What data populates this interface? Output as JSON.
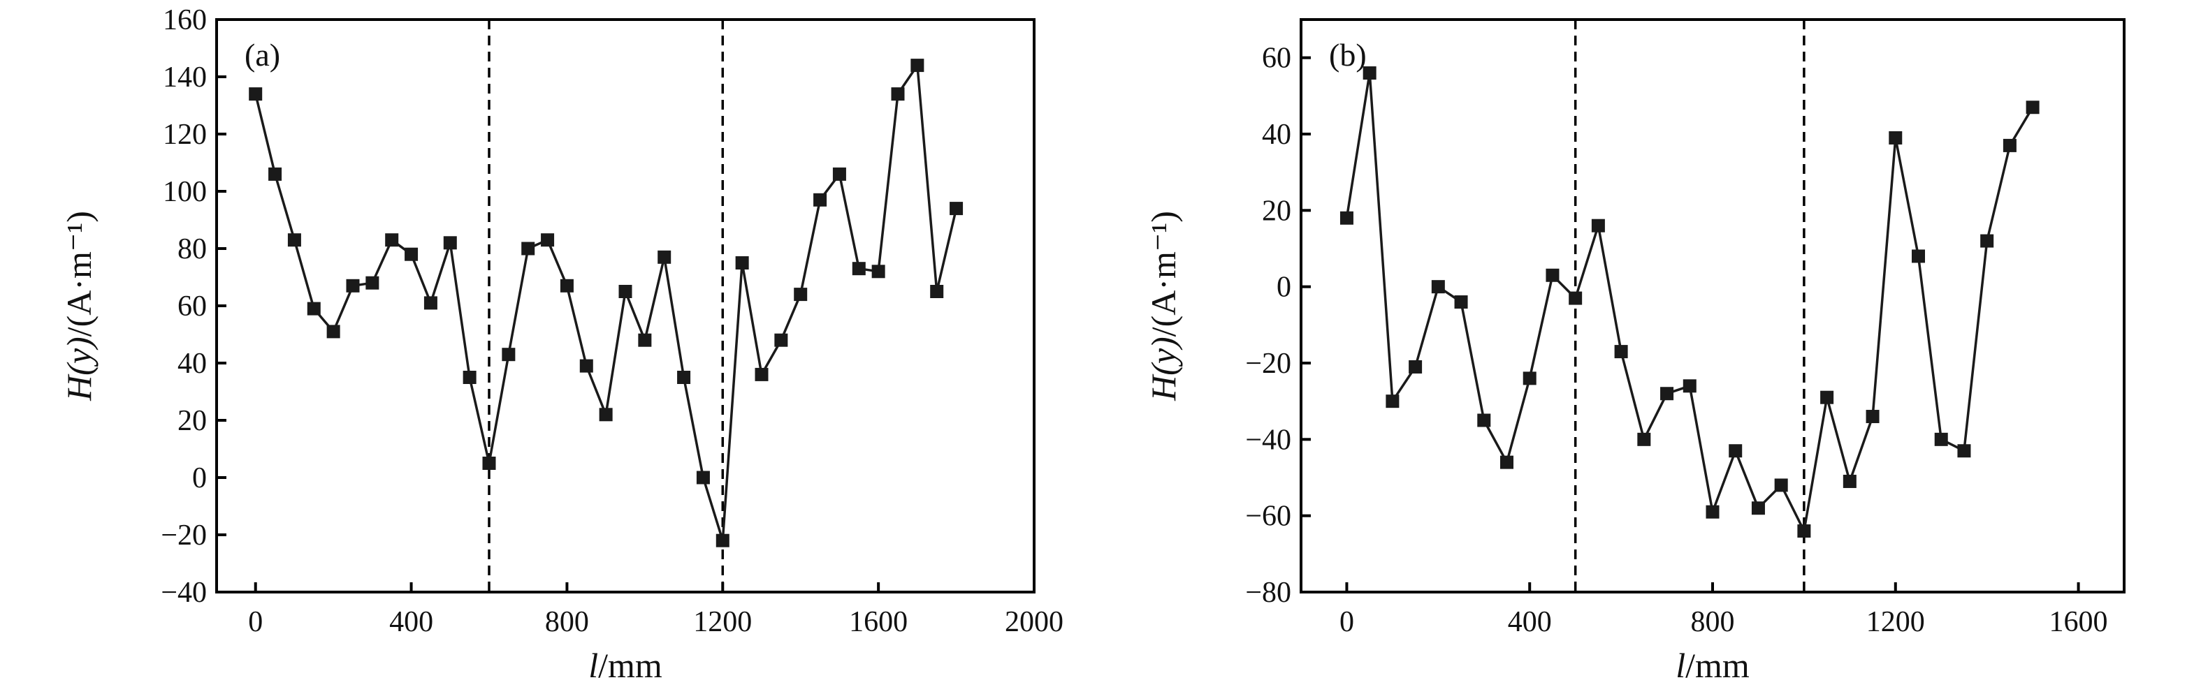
{
  "chart_data": [
    {
      "type": "line",
      "panel_label": "(a)",
      "xlabel_italic": "l",
      "xlabel_rest": "/mm",
      "ylabel_italic": "H(y)",
      "ylabel_rest": "/(A·m⁻¹)",
      "xlim": [
        -100,
        2000
      ],
      "ylim": [
        -40,
        160
      ],
      "xticks": [
        0,
        400,
        800,
        1200,
        1600,
        2000
      ],
      "yticks": [
        -40,
        -20,
        0,
        20,
        40,
        60,
        80,
        100,
        120,
        140,
        160
      ],
      "vertical_dashed_lines_x": [
        600,
        1200
      ],
      "marker": "square",
      "series": [
        {
          "x": [
            0,
            50,
            100,
            150,
            200,
            250,
            300,
            350,
            400,
            450,
            500,
            550,
            600,
            650,
            700,
            750,
            800,
            850,
            900,
            950,
            1000,
            1050,
            1100,
            1150,
            1200,
            1250,
            1300,
            1350,
            1400,
            1450,
            1500,
            1550,
            1600,
            1650,
            1700,
            1750,
            1800
          ],
          "values": [
            134,
            106,
            83,
            59,
            51,
            67,
            68,
            83,
            78,
            61,
            82,
            35,
            5,
            43,
            80,
            83,
            67,
            39,
            22,
            65,
            48,
            77,
            35,
            0,
            -22,
            75,
            36,
            48,
            64,
            97,
            106,
            73,
            72,
            134,
            144,
            65,
            94
          ]
        }
      ]
    },
    {
      "type": "line",
      "panel_label": "(b)",
      "xlabel_italic": "l",
      "xlabel_rest": "/mm",
      "ylabel_italic": "H(y)",
      "ylabel_rest": "/(A·m⁻¹)",
      "xlim": [
        -100,
        1700
      ],
      "ylim": [
        -80,
        70
      ],
      "xticks": [
        0,
        400,
        800,
        1200,
        1600
      ],
      "yticks": [
        -80,
        -60,
        -40,
        -20,
        0,
        20,
        40,
        60
      ],
      "vertical_dashed_lines_x": [
        500,
        1000
      ],
      "marker": "square",
      "series": [
        {
          "x": [
            0,
            50,
            100,
            150,
            200,
            250,
            300,
            350,
            400,
            450,
            500,
            550,
            600,
            650,
            700,
            750,
            800,
            850,
            900,
            950,
            1000,
            1050,
            1100,
            1150,
            1200,
            1250,
            1300,
            1350,
            1400,
            1450,
            1500
          ],
          "values": [
            18,
            56,
            -30,
            -21,
            0,
            -4,
            -35,
            -46,
            -24,
            3,
            -3,
            16,
            -17,
            -40,
            -28,
            -26,
            -59,
            -43,
            -58,
            -52,
            -64,
            -29,
            -51,
            -34,
            39,
            8,
            -40,
            -43,
            12,
            37,
            47
          ]
        }
      ]
    }
  ]
}
